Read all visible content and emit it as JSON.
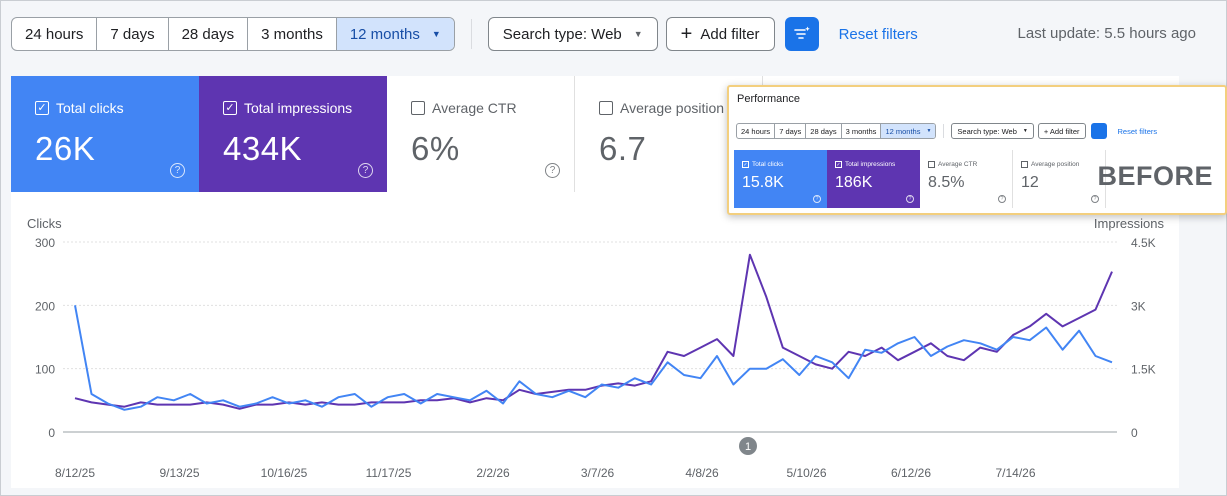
{
  "toolbar": {
    "ranges": [
      {
        "label": "24 hours",
        "active": false
      },
      {
        "label": "7 days",
        "active": false
      },
      {
        "label": "28 days",
        "active": false
      },
      {
        "label": "3 months",
        "active": false
      },
      {
        "label": "12 months",
        "active": true
      }
    ],
    "search_type": "Search type: Web",
    "add_filter": "Add filter",
    "reset_filters": "Reset filters",
    "last_update": "Last update: 5.5 hours ago"
  },
  "metrics": {
    "clicks": {
      "label": "Total clicks",
      "value": "26K",
      "checked": true
    },
    "impressions": {
      "label": "Total impressions",
      "value": "434K",
      "checked": true
    },
    "ctr": {
      "label": "Average CTR",
      "value": "6%",
      "checked": false
    },
    "position": {
      "label": "Average position",
      "value": "6.7",
      "checked": false
    }
  },
  "inset": {
    "title": "Performance",
    "ranges": [
      {
        "label": "24 hours",
        "active": false
      },
      {
        "label": "7 days",
        "active": false
      },
      {
        "label": "28 days",
        "active": false
      },
      {
        "label": "3 months",
        "active": false
      },
      {
        "label": "12 months",
        "active": true
      }
    ],
    "search_type": "Search type: Web",
    "add_filter": "+ Add filter",
    "reset_filters": "Reset filters",
    "metrics": {
      "clicks": {
        "label": "Total clicks",
        "value": "15.8K"
      },
      "impressions": {
        "label": "Total impressions",
        "value": "186K"
      },
      "ctr": {
        "label": "Average CTR",
        "value": "8.5%"
      },
      "position": {
        "label": "Average position",
        "value": "12"
      }
    },
    "tag": "BEFORE"
  },
  "colors": {
    "clicks": "#4285f4",
    "impressions": "#5e35b1",
    "accent": "#1a73e8"
  },
  "chart_data": {
    "type": "line",
    "ylabel_left": "Clicks",
    "ylabel_right": "Impressions",
    "y_left_ticks": [
      "300",
      "200",
      "100",
      "0"
    ],
    "y_right_ticks": [
      "4.5K",
      "3K",
      "1.5K",
      "0"
    ],
    "ylim_left": [
      0,
      300
    ],
    "ylim_right": [
      0,
      4500
    ],
    "x_tick_labels": [
      "8/12/25",
      "9/13/25",
      "10/16/25",
      "11/17/25",
      "2/2/26",
      "3/7/26",
      "4/8/26",
      "5/10/26",
      "6/12/26",
      "7/14/26"
    ],
    "annotation": "1",
    "annotation_at": "5/5/26",
    "series": [
      {
        "name": "Clicks",
        "axis": "left",
        "values": [
          200,
          60,
          45,
          35,
          40,
          55,
          50,
          60,
          45,
          50,
          40,
          45,
          55,
          45,
          50,
          40,
          55,
          60,
          40,
          55,
          60,
          45,
          60,
          55,
          50,
          65,
          45,
          80,
          60,
          55,
          65,
          55,
          75,
          70,
          85,
          75,
          110,
          90,
          85,
          120,
          75,
          100,
          100,
          115,
          90,
          120,
          110,
          85,
          130,
          125,
          140,
          150,
          120,
          135,
          145,
          140,
          130,
          150,
          145,
          165,
          130,
          160,
          120,
          110
        ]
      },
      {
        "name": "Impressions",
        "axis": "right",
        "values": [
          800,
          700,
          650,
          600,
          700,
          650,
          650,
          650,
          700,
          650,
          550,
          650,
          650,
          700,
          650,
          700,
          650,
          650,
          700,
          700,
          700,
          750,
          750,
          800,
          700,
          800,
          750,
          1000,
          900,
          950,
          1000,
          1000,
          1100,
          1150,
          1100,
          1200,
          1900,
          1800,
          2000,
          2200,
          1800,
          4200,
          3200,
          2000,
          1800,
          1600,
          1500,
          1900,
          1800,
          2000,
          1700,
          1900,
          2100,
          1800,
          1700,
          2000,
          1900,
          2300,
          2500,
          2800,
          2500,
          2700,
          2900,
          3800
        ]
      }
    ]
  }
}
